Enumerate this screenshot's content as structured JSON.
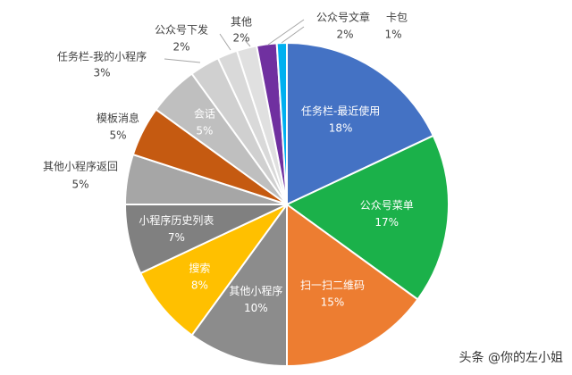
{
  "chart_data": {
    "type": "pie",
    "start_angle_deg": 0,
    "direction": "clockwise",
    "slices": [
      {
        "label": "任务栏-最近使用",
        "value_label": "18%",
        "value": 18,
        "color": "#4472c4",
        "label_inside": true,
        "label_color": "#ffffff"
      },
      {
        "label": "公众号菜单",
        "value_label": "17%",
        "value": 17,
        "color": "#1bb14a",
        "label_inside": true,
        "label_color": "#ffffff"
      },
      {
        "label": "扫一扫二维码",
        "value_label": "15%",
        "value": 15,
        "color": "#ed7d31",
        "label_inside": true,
        "label_color": "#ffffff"
      },
      {
        "label": "其他小程序",
        "value_label": "10%",
        "value": 10,
        "color": "#8c8c8c",
        "label_inside": true,
        "label_color": "#ffffff"
      },
      {
        "label": "搜索",
        "value_label": "8%",
        "value": 8,
        "color": "#ffc000",
        "label_inside": true,
        "label_color": "#ffffff"
      },
      {
        "label": "小程序历史列表",
        "value_label": "7%",
        "value": 7,
        "color": "#808080",
        "label_inside": true,
        "label_color": "#ffffff"
      },
      {
        "label": "其他小程序返回",
        "value_label": "5%",
        "value": 5,
        "color": "#a6a6a6",
        "label_inside": false,
        "label_color": "#404040"
      },
      {
        "label": "模板消息",
        "value_label": "5%",
        "value": 5,
        "color": "#c55a11",
        "label_inside": false,
        "label_color": "#404040"
      },
      {
        "label": "会话",
        "value_label": "5%",
        "value": 5,
        "color": "#bfbfbf",
        "label_inside": true,
        "label_color": "#ffffff"
      },
      {
        "label": "任务栏-我的小程序",
        "value_label": "3%",
        "value": 3,
        "color": "#d0d0d0",
        "label_inside": false,
        "label_color": "#404040"
      },
      {
        "label": "公众号下发",
        "value_label": "2%",
        "value": 2,
        "color": "#d9d9d9",
        "label_inside": false,
        "label_color": "#404040"
      },
      {
        "label": "其他",
        "value_label": "2%",
        "value": 2,
        "color": "#e0e0e0",
        "label_inside": false,
        "label_color": "#404040"
      },
      {
        "label": "公众号文章",
        "value_label": "2%",
        "value": 2,
        "color": "#7030a0",
        "label_inside": false,
        "label_color": "#404040"
      },
      {
        "label": "卡包",
        "value_label": "1%",
        "value": 1,
        "color": "#00b0f0",
        "label_inside": false,
        "label_color": "#404040"
      }
    ]
  },
  "watermark": {
    "text": "头条 @你的左小姐"
  }
}
